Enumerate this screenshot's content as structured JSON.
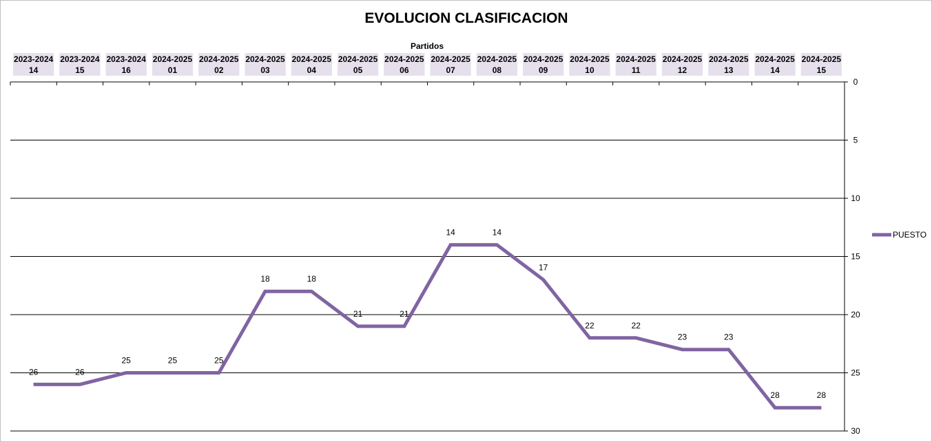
{
  "chart_data": {
    "type": "line",
    "title": "EVOLUCION CLASIFICACION",
    "xlabel": "Partidos",
    "ylabel": "",
    "x_axis_position": "top",
    "y_axis_position": "right",
    "y_reversed": true,
    "ylim": [
      0,
      30
    ],
    "yticks": [
      0,
      5,
      10,
      15,
      20,
      25,
      30
    ],
    "grid": true,
    "legend_position": "right",
    "categories": [
      {
        "season": "2023-2024",
        "match": "14"
      },
      {
        "season": "2023-2024",
        "match": "15"
      },
      {
        "season": "2023-2024",
        "match": "16"
      },
      {
        "season": "2024-2025",
        "match": "01"
      },
      {
        "season": "2024-2025",
        "match": "02"
      },
      {
        "season": "2024-2025",
        "match": "03"
      },
      {
        "season": "2024-2025",
        "match": "04"
      },
      {
        "season": "2024-2025",
        "match": "05"
      },
      {
        "season": "2024-2025",
        "match": "06"
      },
      {
        "season": "2024-2025",
        "match": "07"
      },
      {
        "season": "2024-2025",
        "match": "08"
      },
      {
        "season": "2024-2025",
        "match": "09"
      },
      {
        "season": "2024-2025",
        "match": "10"
      },
      {
        "season": "2024-2025",
        "match": "11"
      },
      {
        "season": "2024-2025",
        "match": "12"
      },
      {
        "season": "2024-2025",
        "match": "13"
      },
      {
        "season": "2024-2025",
        "match": "14"
      },
      {
        "season": "2024-2025",
        "match": "15"
      }
    ],
    "series": [
      {
        "name": "PUESTO",
        "color": "#8064a2",
        "values": [
          26,
          26,
          25,
          25,
          25,
          18,
          18,
          21,
          21,
          14,
          14,
          17,
          22,
          22,
          23,
          23,
          28,
          28
        ]
      }
    ],
    "colors": {
      "category_box": "#e6e0ec",
      "gridline": "#000000",
      "line": "#8064a2"
    }
  }
}
